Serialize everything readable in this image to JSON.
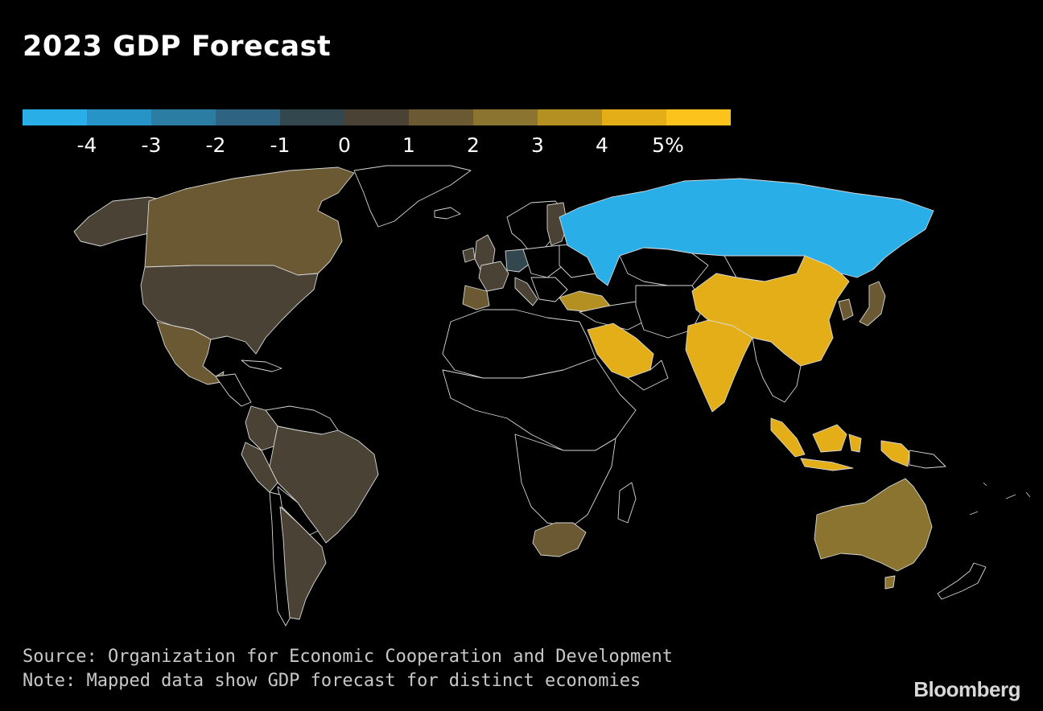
{
  "title": "2023 GDP Forecast",
  "legend": {
    "colors": [
      "#29aee8",
      "#2694c6",
      "#2c7da4",
      "#2f6382",
      "#33474f",
      "#4a4335",
      "#6a5932",
      "#8a7430",
      "#b48f22",
      "#e3ae18",
      "#fcc31c"
    ],
    "ticks": [
      "-4",
      "-3",
      "-2",
      "-1",
      "0",
      "1",
      "2",
      "3",
      "4",
      "5%"
    ]
  },
  "regions": [
    {
      "name": "Alaska",
      "value": 1.0,
      "color": "#4a4335"
    },
    {
      "name": "Canada",
      "value": 1.5,
      "color": "#6a5932"
    },
    {
      "name": "Greenland",
      "value": null,
      "color": "#000000"
    },
    {
      "name": "United States",
      "value": 0.5,
      "color": "#4a4335"
    },
    {
      "name": "Mexico",
      "value": 1.6,
      "color": "#6a5932"
    },
    {
      "name": "Brazil",
      "value": 1.0,
      "color": "#4a4335"
    },
    {
      "name": "Argentina",
      "value": 0.5,
      "color": "#4a4335"
    },
    {
      "name": "Colombia",
      "value": 1.2,
      "color": "#4a4335"
    },
    {
      "name": "Peru",
      "value": 1.0,
      "color": "#4a4335"
    },
    {
      "name": "United Kingdom",
      "value": 0.0,
      "color": "#4a4335"
    },
    {
      "name": "Germany",
      "value": -0.3,
      "color": "#33474f"
    },
    {
      "name": "France",
      "value": 0.6,
      "color": "#4a4335"
    },
    {
      "name": "Spain",
      "value": 1.3,
      "color": "#6a5932"
    },
    {
      "name": "Italy",
      "value": 0.6,
      "color": "#4a4335"
    },
    {
      "name": "Turkey",
      "value": 3.0,
      "color": "#b48f22"
    },
    {
      "name": "Russia",
      "value": -4.5,
      "color": "#29aee8"
    },
    {
      "name": "Saudi Arabia",
      "value": 3.6,
      "color": "#e3ae18"
    },
    {
      "name": "India",
      "value": 5.7,
      "color": "#e3ae18"
    },
    {
      "name": "China",
      "value": 4.6,
      "color": "#e3ae18"
    },
    {
      "name": "Japan",
      "value": 1.8,
      "color": "#6a5932"
    },
    {
      "name": "Korea",
      "value": 1.8,
      "color": "#6a5932"
    },
    {
      "name": "Indonesia",
      "value": 4.7,
      "color": "#e3ae18"
    },
    {
      "name": "Australia",
      "value": 1.9,
      "color": "#8a7430"
    },
    {
      "name": "New Zealand",
      "value": null,
      "color": "#000000"
    },
    {
      "name": "South Africa",
      "value": 1.1,
      "color": "#6a5932"
    }
  ],
  "source": "Source: Organization for Economic Cooperation and Development",
  "note": "Note: Mapped data show GDP forecast for distinct economies",
  "brand": "Bloomberg"
}
